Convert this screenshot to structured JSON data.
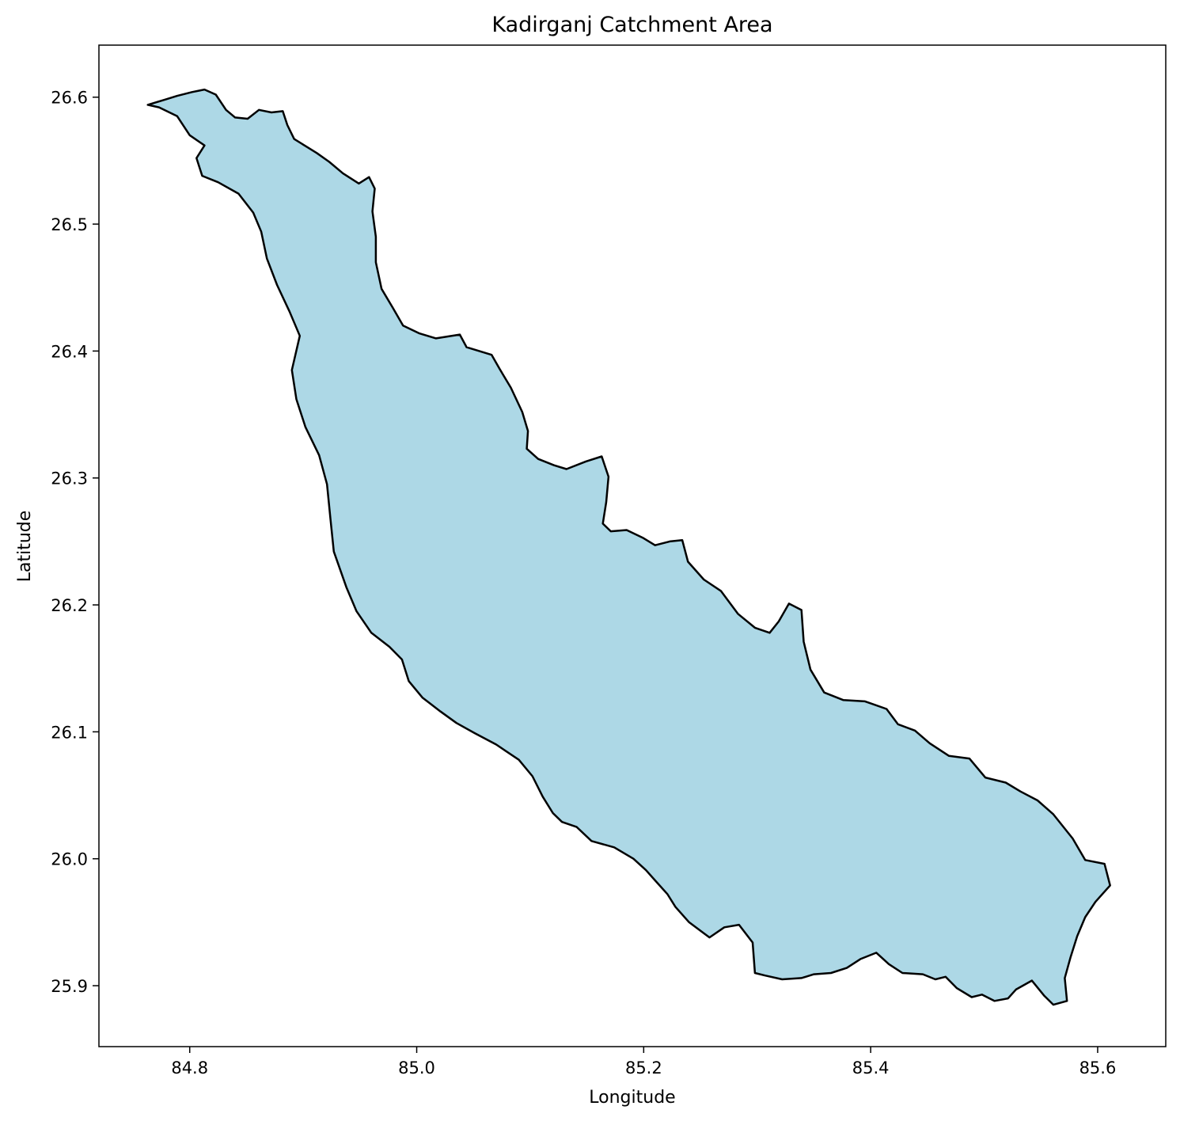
{
  "chart_data": {
    "type": "map",
    "title": "Kadirganj Catchment Area",
    "xlabel": "Longitude",
    "ylabel": "Latitude",
    "xlim": [
      84.72,
      85.66
    ],
    "ylim": [
      25.852,
      26.641
    ],
    "x_ticks": [
      84.8,
      85.0,
      85.2,
      85.4,
      85.6
    ],
    "y_ticks": [
      25.9,
      26.0,
      26.1,
      26.2,
      26.3,
      26.4,
      26.5,
      26.6
    ],
    "x_tick_labels": [
      "84.8",
      "85.0",
      "85.2",
      "85.4",
      "85.6"
    ],
    "y_tick_labels": [
      "25.9",
      "26.0",
      "26.1",
      "26.2",
      "26.3",
      "26.4",
      "26.5",
      "26.6"
    ],
    "grid": false,
    "legend": "none",
    "fill_color": "#add8e6",
    "edge_color": "#000000",
    "boundary": [
      [
        84.763,
        26.594
      ],
      [
        84.778,
        26.598
      ],
      [
        84.789,
        26.601
      ],
      [
        84.802,
        26.604
      ],
      [
        84.813,
        26.606
      ],
      [
        84.823,
        26.602
      ],
      [
        84.832,
        26.59
      ],
      [
        84.84,
        26.584
      ],
      [
        84.851,
        26.583
      ],
      [
        84.861,
        26.59
      ],
      [
        84.872,
        26.588
      ],
      [
        84.882,
        26.589
      ],
      [
        84.886,
        26.578
      ],
      [
        84.892,
        26.567
      ],
      [
        84.903,
        26.561
      ],
      [
        84.912,
        26.556
      ],
      [
        84.923,
        26.549
      ],
      [
        84.935,
        26.54
      ],
      [
        84.949,
        26.532
      ],
      [
        84.958,
        26.537
      ],
      [
        84.963,
        26.528
      ],
      [
        84.961,
        26.51
      ],
      [
        84.964,
        26.49
      ],
      [
        84.964,
        26.47
      ],
      [
        84.969,
        26.449
      ],
      [
        84.979,
        26.434
      ],
      [
        84.988,
        26.42
      ],
      [
        85.002,
        26.414
      ],
      [
        85.017,
        26.41
      ],
      [
        85.038,
        26.413
      ],
      [
        85.044,
        26.403
      ],
      [
        85.066,
        26.397
      ],
      [
        85.073,
        26.386
      ],
      [
        85.083,
        26.371
      ],
      [
        85.093,
        26.352
      ],
      [
        85.098,
        26.337
      ],
      [
        85.097,
        26.323
      ],
      [
        85.107,
        26.315
      ],
      [
        85.121,
        26.31
      ],
      [
        85.132,
        26.307
      ],
      [
        85.149,
        26.313
      ],
      [
        85.163,
        26.317
      ],
      [
        85.169,
        26.301
      ],
      [
        85.167,
        26.281
      ],
      [
        85.164,
        26.264
      ],
      [
        85.171,
        26.258
      ],
      [
        85.185,
        26.259
      ],
      [
        85.199,
        26.253
      ],
      [
        85.21,
        26.247
      ],
      [
        85.223,
        26.25
      ],
      [
        85.234,
        26.251
      ],
      [
        85.239,
        26.234
      ],
      [
        85.253,
        26.22
      ],
      [
        85.268,
        26.211
      ],
      [
        85.283,
        26.193
      ],
      [
        85.298,
        26.182
      ],
      [
        85.311,
        26.178
      ],
      [
        85.319,
        26.187
      ],
      [
        85.328,
        26.201
      ],
      [
        85.339,
        26.196
      ],
      [
        85.341,
        26.171
      ],
      [
        85.347,
        26.149
      ],
      [
        85.359,
        26.131
      ],
      [
        85.376,
        26.125
      ],
      [
        85.395,
        26.124
      ],
      [
        85.414,
        26.118
      ],
      [
        85.424,
        26.106
      ],
      [
        85.439,
        26.101
      ],
      [
        85.452,
        26.091
      ],
      [
        85.469,
        26.081
      ],
      [
        85.487,
        26.079
      ],
      [
        85.501,
        26.064
      ],
      [
        85.519,
        26.06
      ],
      [
        85.532,
        26.053
      ],
      [
        85.547,
        26.046
      ],
      [
        85.561,
        26.035
      ],
      [
        85.578,
        26.016
      ],
      [
        85.589,
        25.999
      ],
      [
        85.606,
        25.996
      ],
      [
        85.611,
        25.979
      ],
      [
        85.598,
        25.966
      ],
      [
        85.589,
        25.954
      ],
      [
        85.582,
        25.939
      ],
      [
        85.576,
        25.922
      ],
      [
        85.571,
        25.906
      ],
      [
        85.573,
        25.888
      ],
      [
        85.561,
        25.885
      ],
      [
        85.553,
        25.892
      ],
      [
        85.542,
        25.904
      ],
      [
        85.528,
        25.897
      ],
      [
        85.521,
        25.89
      ],
      [
        85.509,
        25.888
      ],
      [
        85.498,
        25.893
      ],
      [
        85.489,
        25.891
      ],
      [
        85.476,
        25.898
      ],
      [
        85.466,
        25.907
      ],
      [
        85.457,
        25.905
      ],
      [
        85.446,
        25.909
      ],
      [
        85.428,
        25.91
      ],
      [
        85.416,
        25.917
      ],
      [
        85.405,
        25.926
      ],
      [
        85.391,
        25.921
      ],
      [
        85.379,
        25.914
      ],
      [
        85.365,
        25.91
      ],
      [
        85.35,
        25.909
      ],
      [
        85.339,
        25.906
      ],
      [
        85.322,
        25.905
      ],
      [
        85.307,
        25.908
      ],
      [
        85.298,
        25.91
      ],
      [
        85.296,
        25.934
      ],
      [
        85.284,
        25.948
      ],
      [
        85.271,
        25.946
      ],
      [
        85.258,
        25.938
      ],
      [
        85.24,
        25.95
      ],
      [
        85.228,
        25.962
      ],
      [
        85.221,
        25.972
      ],
      [
        85.21,
        25.983
      ],
      [
        85.202,
        25.991
      ],
      [
        85.191,
        26.0
      ],
      [
        85.174,
        26.009
      ],
      [
        85.154,
        26.014
      ],
      [
        85.141,
        26.025
      ],
      [
        85.128,
        26.029
      ],
      [
        85.12,
        26.036
      ],
      [
        85.111,
        26.049
      ],
      [
        85.102,
        26.065
      ],
      [
        85.09,
        26.078
      ],
      [
        85.07,
        26.09
      ],
      [
        85.051,
        26.099
      ],
      [
        85.035,
        26.107
      ],
      [
        85.021,
        26.116
      ],
      [
        85.005,
        26.127
      ],
      [
        84.993,
        26.14
      ],
      [
        84.987,
        26.157
      ],
      [
        84.976,
        26.167
      ],
      [
        84.96,
        26.178
      ],
      [
        84.947,
        26.195
      ],
      [
        84.938,
        26.214
      ],
      [
        84.927,
        26.242
      ],
      [
        84.924,
        26.268
      ],
      [
        84.921,
        26.295
      ],
      [
        84.914,
        26.318
      ],
      [
        84.902,
        26.34
      ],
      [
        84.894,
        26.362
      ],
      [
        84.89,
        26.385
      ],
      [
        84.897,
        26.412
      ],
      [
        84.888,
        26.431
      ],
      [
        84.877,
        26.452
      ],
      [
        84.868,
        26.473
      ],
      [
        84.863,
        26.494
      ],
      [
        84.856,
        26.509
      ],
      [
        84.843,
        26.524
      ],
      [
        84.825,
        26.533
      ],
      [
        84.811,
        26.538
      ],
      [
        84.806,
        26.552
      ],
      [
        84.813,
        26.562
      ],
      [
        84.8,
        26.57
      ],
      [
        84.789,
        26.585
      ],
      [
        84.773,
        26.592
      ],
      [
        84.763,
        26.594
      ]
    ]
  }
}
